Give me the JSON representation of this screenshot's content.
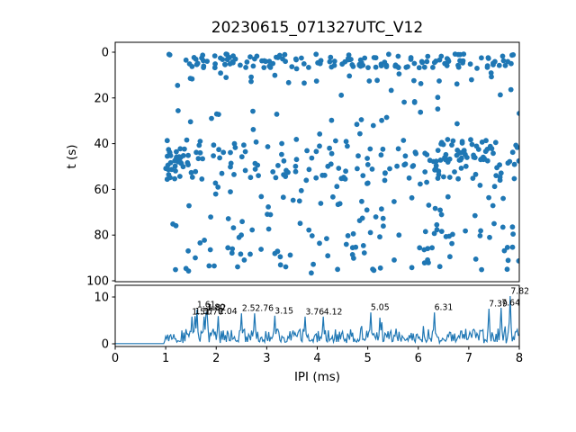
{
  "figure": {
    "title": "20230615_071327UTC_V12",
    "background": "#ffffff",
    "accent_color": "#1f77b4",
    "text_color": "#000000"
  },
  "chart_data": [
    {
      "type": "scatter",
      "title": "20230615_071327UTC_V12",
      "xlabel": "",
      "ylabel": "t (s)",
      "xlim": [
        0,
        8
      ],
      "ylim": [
        0,
        100
      ],
      "y_inverted": true,
      "yticks": [
        0,
        20,
        40,
        60,
        80,
        100
      ],
      "grid": false,
      "legend": "none",
      "marker_color": "#1f77b4",
      "marker_radius_px": 2.9,
      "seed": 7,
      "bands": [
        {
          "x": [
            1.0,
            8.0
          ],
          "t": [
            0.8,
            6.8
          ],
          "n": 150
        },
        {
          "x": [
            1.0,
            8.0
          ],
          "t": [
            6.8,
            15.0
          ],
          "n": 24
        },
        {
          "x": [
            1.2,
            8.0
          ],
          "t": [
            15.0,
            37.0
          ],
          "n": 28
        },
        {
          "x": [
            1.0,
            8.0
          ],
          "t": [
            38.0,
            56.0
          ],
          "n": 150
        },
        {
          "x": [
            1.03,
            1.35
          ],
          "t": [
            42.0,
            56.0
          ],
          "n": 25
        },
        {
          "x": [
            6.3,
            8.0
          ],
          "t": [
            38.0,
            50.0
          ],
          "n": 35
        },
        {
          "x": [
            1.1,
            8.0
          ],
          "t": [
            56.0,
            73.0
          ],
          "n": 45
        },
        {
          "x": [
            1.05,
            8.0
          ],
          "t": [
            73.0,
            97.0
          ],
          "n": 95
        }
      ]
    },
    {
      "type": "line",
      "xlabel": "IPI (ms)",
      "ylabel": "",
      "xlim": [
        0,
        8
      ],
      "ylim": [
        0,
        12.5
      ],
      "xticks": [
        0,
        1,
        2,
        3,
        4,
        5,
        6,
        7,
        8
      ],
      "yticks": [
        0,
        10
      ],
      "grid": false,
      "legend": "none",
      "line_color": "#1f77b4",
      "flat_until": 0.98,
      "step": 0.02,
      "noise": {
        "base": 0.35,
        "span": 2.9,
        "skew": 1.4,
        "spike_chance": 0.07,
        "dip_chance": 0.08
      },
      "seed": 13,
      "peaks": [
        {
          "x": 1.51,
          "h": 5.8,
          "label": "1.51"
        },
        {
          "x": 1.57,
          "h": 5.9,
          "label": "1.57"
        },
        {
          "x": 1.61,
          "h": 7.3,
          "label": "1.61"
        },
        {
          "x": 1.76,
          "h": 5.8,
          "label": "1.76"
        },
        {
          "x": 1.8,
          "h": 6.7,
          "label": "1.80"
        },
        {
          "x": 1.82,
          "h": 6.6,
          "label": "1.82"
        },
        {
          "x": 2.04,
          "h": 5.9,
          "label": "2.04"
        },
        {
          "x": 2.5,
          "h": 6.5,
          "label": "2.5"
        },
        {
          "x": 2.76,
          "h": 6.5,
          "label": "2.76"
        },
        {
          "x": 3.15,
          "h": 6.0,
          "label": "3.15"
        },
        {
          "x": 3.76,
          "h": 5.8,
          "label": "3.76"
        },
        {
          "x": 4.12,
          "h": 5.8,
          "label": "4.12"
        },
        {
          "x": 5.05,
          "h": 6.7,
          "label": "5.05"
        },
        {
          "x": 6.31,
          "h": 6.7,
          "label": "6.31"
        },
        {
          "x": 7.39,
          "h": 7.5,
          "label": "7.39"
        },
        {
          "x": 7.64,
          "h": 7.7,
          "label": "7.64"
        },
        {
          "x": 7.82,
          "h": 10.2,
          "label": "7.82"
        }
      ]
    }
  ],
  "layout_labels": {
    "main_y_tick_labels": [
      "0",
      "20",
      "40",
      "60",
      "80",
      "100"
    ],
    "bottom_y_tick_labels": [
      "10",
      "0"
    ],
    "bottom_x_tick_labels": [
      "0",
      "1",
      "2",
      "3",
      "4",
      "5",
      "6",
      "7",
      "8"
    ]
  }
}
